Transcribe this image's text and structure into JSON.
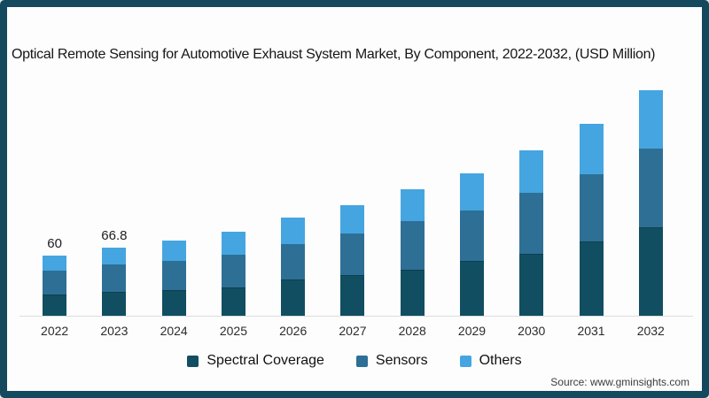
{
  "frame": {
    "border_color": "#14495e",
    "background": "#fdfdfd"
  },
  "title": "Optical Remote Sensing for Automotive Exhaust System Market, By Component, 2022-2032, (USD Million)",
  "source": "Source: www.gminsights.com",
  "legend": {
    "position": "bottom",
    "items": [
      "Spectral Coverage",
      "Sensors",
      "Others"
    ]
  },
  "chart_data": {
    "type": "bar",
    "stacked": true,
    "unit": "USD Million",
    "title": "Optical Remote Sensing for Automotive Exhaust System Market, By Component, 2022-2032, (USD Million)",
    "xlabel": "",
    "ylabel": "",
    "grid": false,
    "legend_position": "bottom",
    "ylim": [
      0,
      230
    ],
    "categories": [
      "2022",
      "2023",
      "2024",
      "2025",
      "2026",
      "2027",
      "2028",
      "2029",
      "2030",
      "2031",
      "2032"
    ],
    "series": [
      {
        "name": "Spectral Coverage",
        "color": "#114e62",
        "values": [
          21.2,
          23.4,
          25.2,
          27.8,
          35.7,
          40.0,
          45.2,
          53.9,
          60.9,
          73.1,
          87.0
        ]
      },
      {
        "name": "Sensors",
        "color": "#2e6f95",
        "values": [
          23.8,
          26.9,
          28.7,
          32.2,
          34.8,
          40.9,
          47.9,
          49.6,
          60.0,
          66.1,
          77.4
        ]
      },
      {
        "name": "Others",
        "color": "#45a5e0",
        "values": [
          15.0,
          16.5,
          20.0,
          22.6,
          26.1,
          27.8,
          31.3,
          36.5,
          41.8,
          49.6,
          57.4
        ]
      }
    ],
    "totals_estimated": [
      60,
      66.8,
      73.9,
      82.6,
      96.6,
      108.7,
      124.4,
      140.0,
      162.7,
      188.8,
      221.8
    ],
    "data_labels": {
      "2022": "60",
      "2023": "66.8"
    }
  }
}
